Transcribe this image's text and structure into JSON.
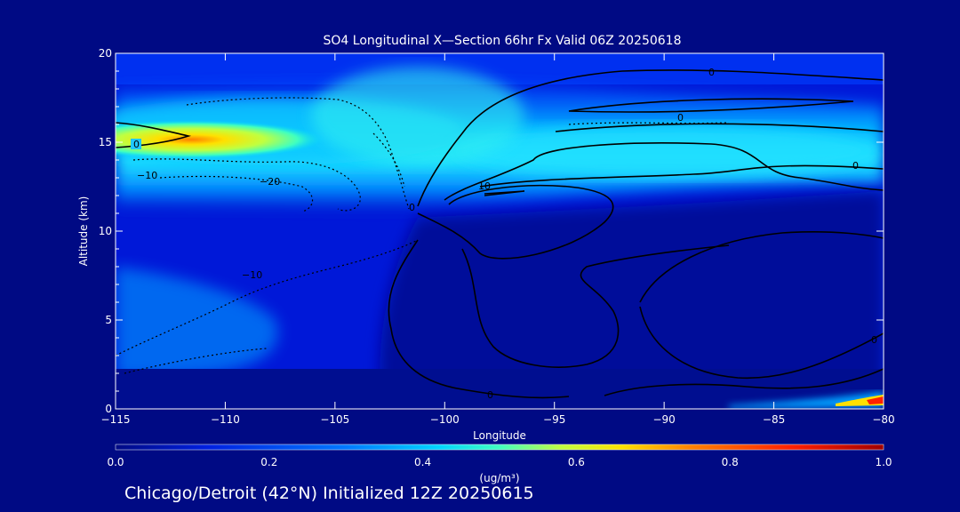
{
  "chart_data": {
    "type": "heatmap",
    "title": "SO4 Longitudinal X—Section 66hr  Fx Valid 06Z 20250618",
    "xlabel": "Longitude",
    "ylabel": "Altitude (km)",
    "xlim": [
      -115,
      -80
    ],
    "ylim": [
      0,
      20
    ],
    "x_ticks": [
      -115,
      -110,
      -105,
      -100,
      -95,
      -90,
      -85,
      -80
    ],
    "y_ticks": [
      0,
      5,
      10,
      15,
      20
    ],
    "x_tick_labels": [
      "−115",
      "−110",
      "−105",
      "−100",
      "−95",
      "−90",
      "−85",
      "−80"
    ],
    "y_tick_labels": [
      "0",
      "5",
      "10",
      "15",
      "20"
    ],
    "colorbar": {
      "ticks": [
        0.0,
        0.2,
        0.4,
        0.6,
        0.8,
        1.0
      ],
      "tick_labels": [
        "0.0",
        "0.2",
        "0.4",
        "0.6",
        "0.8",
        "1.0"
      ],
      "unit_label": "(ug/m³)",
      "colors": [
        "#000a84",
        "#0020e0",
        "#0078ff",
        "#00d4ff",
        "#40ffc0",
        "#c0ff40",
        "#ffe000",
        "#ff8000",
        "#ff2000",
        "#a00000"
      ]
    },
    "features": [
      {
        "name": "upper layer",
        "lon_range": [
          -115,
          -80
        ],
        "alt_range": [
          12,
          18
        ],
        "peak": {
          "lon": -113,
          "alt": 15,
          "value": 0.65
        }
      },
      {
        "name": "surface plume",
        "lon_range": [
          -84,
          -80
        ],
        "alt_range": [
          0,
          1
        ],
        "peak": {
          "lon": -80,
          "alt": 0.5,
          "value": 1.0
        }
      }
    ],
    "contour_labels": [
      "0",
      "−10",
      "−20",
      "−10",
      "0",
      "10",
      "0",
      "0",
      "0",
      "0",
      "0"
    ]
  },
  "footer": {
    "caption": "Chicago/Detroit (42°N) Initialized 12Z 20250615"
  }
}
